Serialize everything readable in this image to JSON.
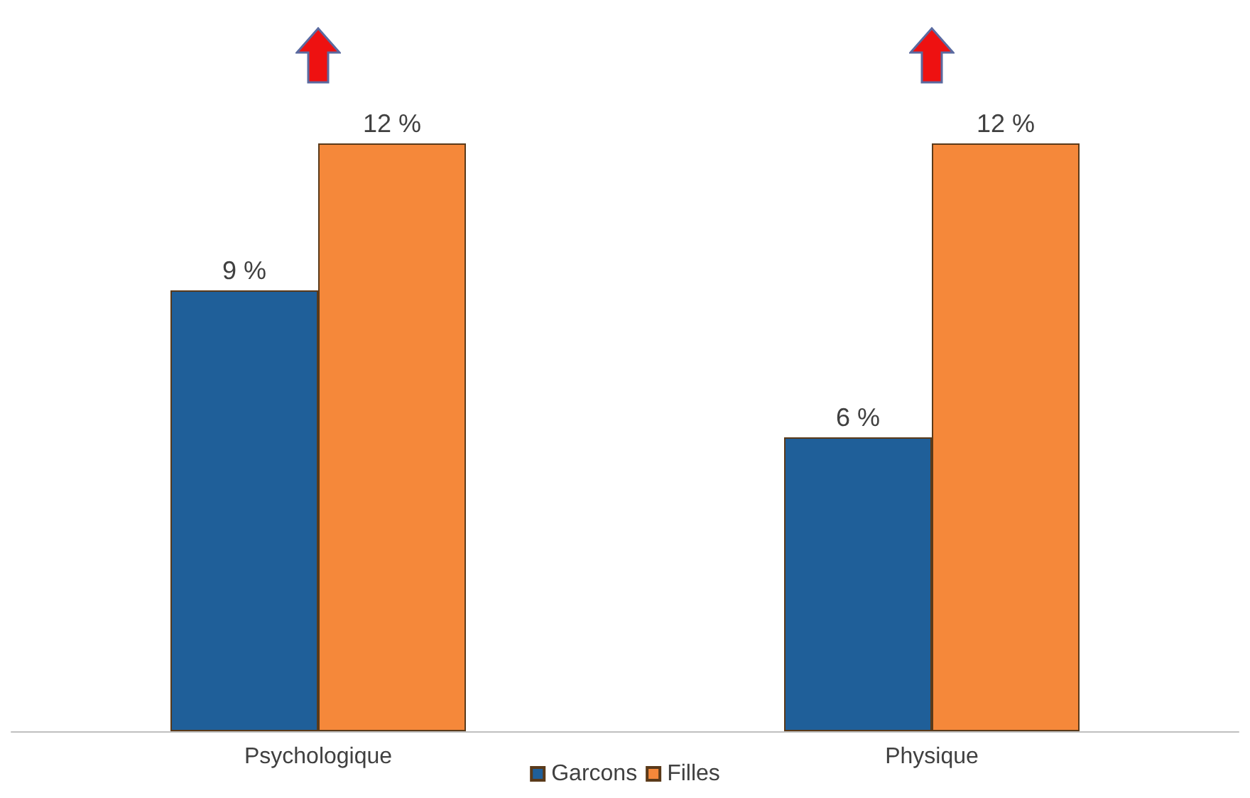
{
  "chart_data": {
    "type": "bar",
    "categories": [
      "Psychologique",
      "Physique"
    ],
    "series": [
      {
        "name": "Garcons",
        "color": "#1f5f99",
        "values": [
          9,
          6
        ],
        "value_labels": [
          "9 %",
          "6 %"
        ]
      },
      {
        "name": "Filles",
        "color": "#f5883a",
        "values": [
          12,
          12
        ],
        "value_labels": [
          "12 %",
          "12 %"
        ]
      }
    ],
    "legend": "bottom"
  }
}
